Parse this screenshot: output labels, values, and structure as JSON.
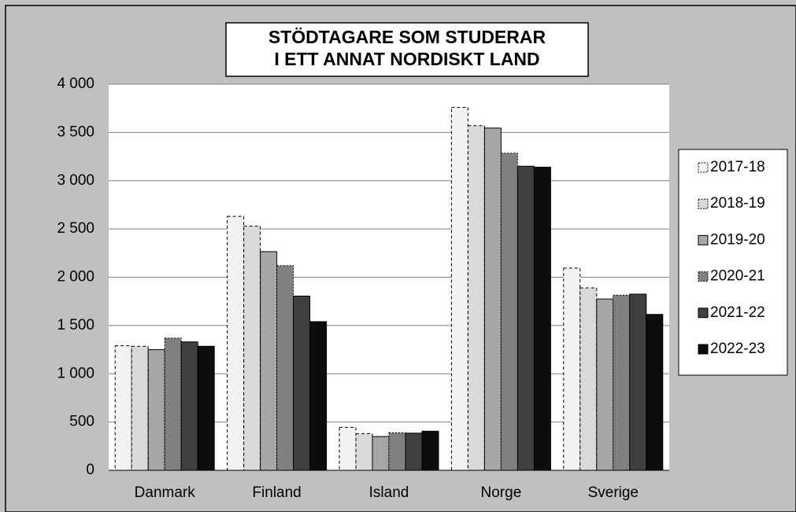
{
  "chart_data": {
    "type": "bar",
    "title": [
      "STÖDTAGARE SOM STUDERAR",
      "I ETT ANNAT NORDISKT LAND"
    ],
    "categories": [
      "Danmark",
      "Finland",
      "Island",
      "Norge",
      "Sverige"
    ],
    "series": [
      {
        "name": "2017-18",
        "color": "#f2f2f2",
        "values": [
          1290,
          2630,
          445,
          3760,
          2095
        ]
      },
      {
        "name": "2018-19",
        "color": "#d9d9d9",
        "values": [
          1285,
          2530,
          380,
          3570,
          1890
        ]
      },
      {
        "name": "2019-20",
        "color": "#a6a6a6",
        "values": [
          1250,
          2265,
          350,
          3545,
          1775
        ]
      },
      {
        "name": "2020-21",
        "color": "#808080",
        "values": [
          1370,
          2120,
          390,
          3285,
          1815
        ]
      },
      {
        "name": "2021-22",
        "color": "#404040",
        "values": [
          1330,
          1805,
          385,
          3150,
          1825
        ]
      },
      {
        "name": "2022-23",
        "color": "#0d0d0d",
        "values": [
          1285,
          1540,
          405,
          3140,
          1615
        ]
      }
    ],
    "ylim": [
      0,
      4000
    ],
    "yticks": [
      0,
      500,
      {
        "value": 1000,
        "label": "1 000"
      },
      {
        "value": 1500,
        "label": "1 500"
      },
      {
        "value": 2000,
        "label": "2 000"
      },
      {
        "value": 2500,
        "label": "2 500"
      },
      {
        "value": 3000,
        "label": "3 000"
      },
      {
        "value": 3500,
        "label": "3 500"
      },
      {
        "value": 4000,
        "label": "4 000"
      }
    ],
    "grid": true,
    "legend": "right"
  }
}
